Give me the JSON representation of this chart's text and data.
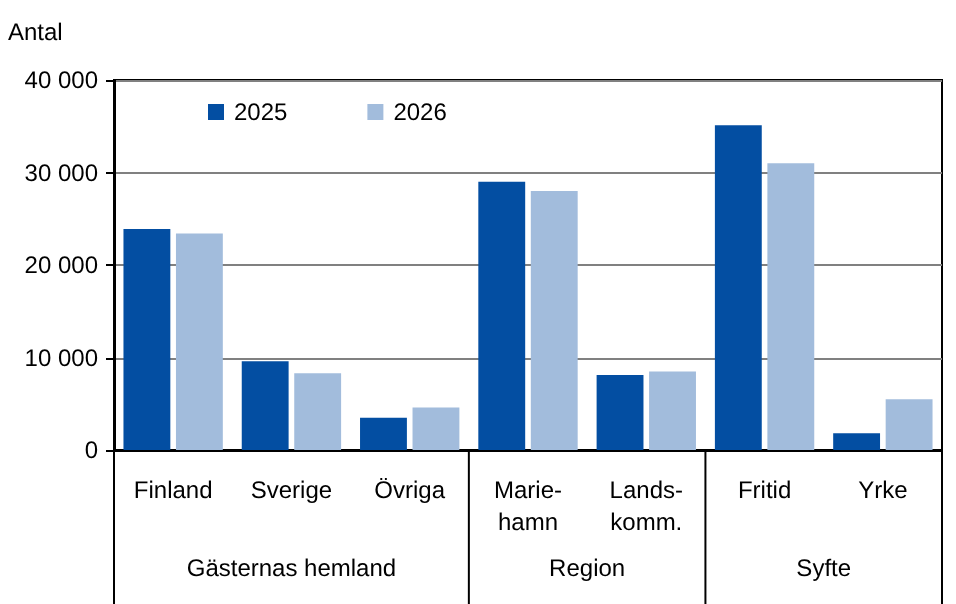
{
  "chart_data": {
    "type": "bar",
    "ylabel": "Antal",
    "categories": [
      "Finland",
      "Sverige",
      "Övriga",
      "Marie-\nhamn",
      "Lands-\nkomm.",
      "Fritid",
      "Yrke"
    ],
    "series": [
      {
        "name": "2025",
        "color": "#034ea2",
        "values": [
          23900,
          9600,
          3500,
          29000,
          8100,
          35100,
          1800
        ]
      },
      {
        "name": "2026",
        "color": "#a2bcdc",
        "values": [
          23400,
          8300,
          4600,
          28000,
          8500,
          31000,
          5500
        ]
      }
    ],
    "ylim": [
      0,
      40000
    ],
    "yticks": [
      {
        "value": 0,
        "label": "0"
      },
      {
        "value": 10000,
        "label": "10 000"
      },
      {
        "value": 20000,
        "label": "20 000"
      },
      {
        "value": 30000,
        "label": "30 000"
      },
      {
        "value": 40000,
        "label": "40 000"
      }
    ],
    "annotations": [
      "Gästernas hemland",
      "Region",
      "Syfte"
    ],
    "grid": "y",
    "legend": "top left"
  }
}
